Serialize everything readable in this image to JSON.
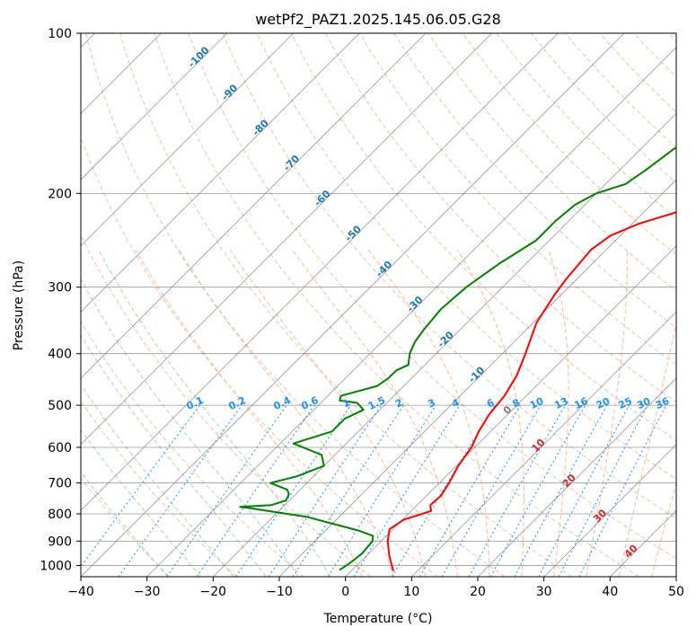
{
  "chart_data": {
    "type": "line",
    "chart_kind": "Skew-T log-P diagram",
    "title": "wetPf2_PAZ1.2025.145.06.05.G28",
    "xlabel": "Temperature (°C)",
    "ylabel": "Pressure (hPa)",
    "xlim": [
      -40,
      50
    ],
    "ylim": [
      1050,
      100
    ],
    "y_scale": "log",
    "x_ticks": [
      -40,
      -30,
      -20,
      -10,
      0,
      10,
      20,
      30,
      40,
      50
    ],
    "y_ticks": [
      1000,
      900,
      800,
      700,
      600,
      500,
      400,
      300,
      200,
      100
    ],
    "grid": true,
    "isotherm_labels": [
      -100,
      -90,
      -80,
      -70,
      -60,
      -50,
      -40,
      -30,
      -20,
      -10,
      0,
      10,
      20,
      30,
      40
    ],
    "isotherm_label_pressure": 500,
    "mixing_ratio_labels": [
      "0.1",
      "0.2",
      "0.4",
      "0.6",
      "1",
      "1.5",
      "2",
      "3",
      "4",
      "6",
      "8",
      "10",
      "13",
      "16",
      "20",
      "25",
      "30",
      "36"
    ],
    "colors": {
      "temperature": "#ff0000",
      "dewpoint": "#008000",
      "isotherm": "#808080",
      "dry_adiabat": "#d2b48c",
      "moist_adiabat": "#ffa07a",
      "mixing_ratio": "#1e90ff",
      "moist_adiabat_green": "#90c890",
      "cold_label": "#1f77b4",
      "warm_label": "#d62728"
    },
    "series": [
      {
        "name": "Temperature",
        "x": [
          6.4,
          3.5,
          1.0,
          -0.5,
          0.2,
          3.0,
          2.0,
          2.2,
          1.5,
          0.3,
          -0.5,
          -1.8,
          -2.8,
          -3.3,
          -4.5,
          -6.5,
          -9.5,
          -11.0,
          -11.6,
          -12.0,
          -12.3,
          -11.5,
          -9.0,
          -4.0,
          0.5,
          2.0,
          5.5,
          9.0,
          11.5,
          13.5,
          15.5,
          17.5,
          19.5,
          21.5,
          23.0
        ],
        "y": [
          1025,
          960,
          900,
          855,
          820,
          790,
          770,
          740,
          700,
          650,
          600,
          560,
          520,
          480,
          440,
          400,
          350,
          310,
          290,
          270,
          255,
          240,
          228,
          214,
          200,
          185,
          165,
          150,
          140,
          130,
          122,
          115,
          110,
          105,
          100
        ]
      },
      {
        "name": "Dewpoint",
        "x": [
          -1.9,
          -1.4,
          -1.0,
          -1.3,
          -2.0,
          -5.0,
          -15.0,
          -25.0,
          -26.5,
          -22.0,
          -20.5,
          -21.0,
          -22.0,
          -25.5,
          -22.5,
          -20.0,
          -22.0,
          -28.0,
          -24.0,
          -24.0,
          -22.5,
          -24.5,
          -27.5,
          -28.0,
          -24.0,
          -23.5,
          -23.5,
          -22.5,
          -24.0,
          -25.0,
          -25.5,
          -26.0,
          -25.5,
          -24.0,
          -22.0,
          -22.0,
          -21.5,
          -20.0,
          -17.0,
          -16.0,
          -15.0,
          -12.5,
          -11.0,
          -10.0,
          -8.5,
          -6.5
        ],
        "y": [
          1020,
          990,
          950,
          900,
          880,
          860,
          810,
          780,
          776,
          770,
          755,
          735,
          720,
          700,
          680,
          650,
          620,
          590,
          560,
          530,
          510,
          495,
          490,
          480,
          460,
          445,
          430,
          420,
          400,
          380,
          360,
          330,
          300,
          270,
          245,
          225,
          210,
          200,
          192,
          180,
          165,
          155,
          140,
          125,
          110,
          100
        ]
      }
    ]
  }
}
